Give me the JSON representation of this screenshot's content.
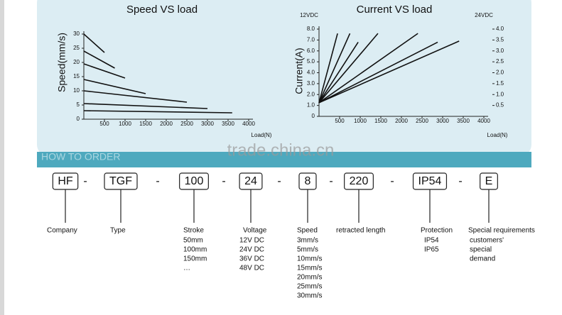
{
  "chart_data": [
    {
      "type": "line",
      "title": "Speed VS load",
      "y_label": "Speed(mm/s)",
      "x_label": "Load(N)",
      "xlim": [
        0,
        4000
      ],
      "xticks": [
        500,
        1000,
        1500,
        2000,
        2500,
        3000,
        3500,
        4000
      ],
      "ylim": [
        0,
        30
      ],
      "yticks": [
        0,
        5,
        10,
        15,
        20,
        25,
        30
      ],
      "series": [
        {
          "color": "#111111",
          "x": [
            0,
            500
          ],
          "values": [
            30,
            23.5
          ]
        },
        {
          "color": "#111111",
          "x": [
            0,
            750
          ],
          "values": [
            24,
            18
          ]
        },
        {
          "color": "#111111",
          "x": [
            0,
            1000
          ],
          "values": [
            19.5,
            14.5
          ]
        },
        {
          "color": "#111111",
          "x": [
            0,
            1500
          ],
          "values": [
            14,
            9
          ]
        },
        {
          "color": "#111111",
          "x": [
            0,
            2500
          ],
          "values": [
            10,
            6
          ]
        },
        {
          "color": "#111111",
          "x": [
            0,
            3000
          ],
          "values": [
            5.5,
            3.75
          ]
        },
        {
          "color": "#111111",
          "x": [
            0,
            3600
          ],
          "values": [
            3,
            2.25
          ]
        }
      ]
    },
    {
      "type": "line",
      "title": "Current VS load",
      "y_label": "Current(A)",
      "x_label": "Load(N)",
      "y_axis_title": "12VDC",
      "y2_axis_title": "24VDC",
      "xlim": [
        0,
        4000
      ],
      "xticks": [
        500,
        1000,
        1500,
        2000,
        2500,
        3000,
        3500,
        4000
      ],
      "ylim": [
        0,
        8
      ],
      "yticks": [
        0,
        {
          "value": 1,
          "label": "1.0"
        },
        {
          "value": 2,
          "label": "2.0"
        },
        {
          "value": 3,
          "label": "3.0"
        },
        {
          "value": 4,
          "label": "4.0"
        },
        {
          "value": 5,
          "label": "5.0"
        },
        {
          "value": 6,
          "label": "6.0"
        },
        {
          "value": 7,
          "label": "7.0"
        },
        {
          "value": 8,
          "label": "8.0"
        }
      ],
      "y2lim": [
        0,
        4
      ],
      "y2ticks": [
        0.5,
        {
          "value": 1,
          "label": "1.0"
        },
        1.5,
        {
          "value": 2,
          "label": "2.0"
        },
        2.5,
        {
          "value": 3,
          "label": "3.0"
        },
        3.5,
        {
          "value": 4,
          "label": "4.0"
        }
      ],
      "series": [
        {
          "color": "#111111",
          "x": [
            0,
            450
          ],
          "values": [
            1.25,
            7.6
          ]
        },
        {
          "color": "#111111",
          "x": [
            0,
            750
          ],
          "values": [
            1.25,
            7.6
          ]
        },
        {
          "color": "#111111",
          "x": [
            0,
            950
          ],
          "values": [
            1.25,
            6.8
          ]
        },
        {
          "color": "#111111",
          "x": [
            0,
            1430
          ],
          "values": [
            1.25,
            7.6
          ]
        },
        {
          "color": "#111111",
          "x": [
            0,
            2400
          ],
          "values": [
            1.25,
            7.6
          ]
        },
        {
          "color": "#111111",
          "x": [
            0,
            2880
          ],
          "values": [
            1.25,
            6.8
          ]
        },
        {
          "color": "#111111",
          "x": [
            0,
            3400
          ],
          "values": [
            1.25,
            6.9
          ]
        }
      ]
    }
  ],
  "banner": "HOW TO ORDER",
  "watermark": "trade.china.cn",
  "order_code": {
    "codes": [
      "HF",
      "TGF",
      "100",
      "24",
      "8",
      "220",
      "IP54",
      "E"
    ],
    "separators": [
      "-",
      "-",
      "-",
      "-",
      "-",
      "-",
      "-"
    ],
    "fields": [
      {
        "label": "Company",
        "items": []
      },
      {
        "label": "Type",
        "items": []
      },
      {
        "label": "Stroke",
        "items": [
          "50mm",
          "100mm",
          "150mm",
          "…"
        ]
      },
      {
        "label": "Voltage",
        "items": [
          "12V DC",
          "24V DC",
          "36V DC",
          "48V DC"
        ]
      },
      {
        "label": "Speed",
        "items": [
          "3mm/s",
          "5mm/s",
          "10mm/s",
          "15mm/s",
          "20mm/s",
          "25mm/s",
          "30mm/s"
        ]
      },
      {
        "label": "retracted length",
        "items": []
      },
      {
        "label": "Protection",
        "items": [
          "IP54",
          "IP65"
        ]
      },
      {
        "label": "Special requirements",
        "items": [
          "customers'",
          "special",
          "demand"
        ]
      }
    ]
  }
}
